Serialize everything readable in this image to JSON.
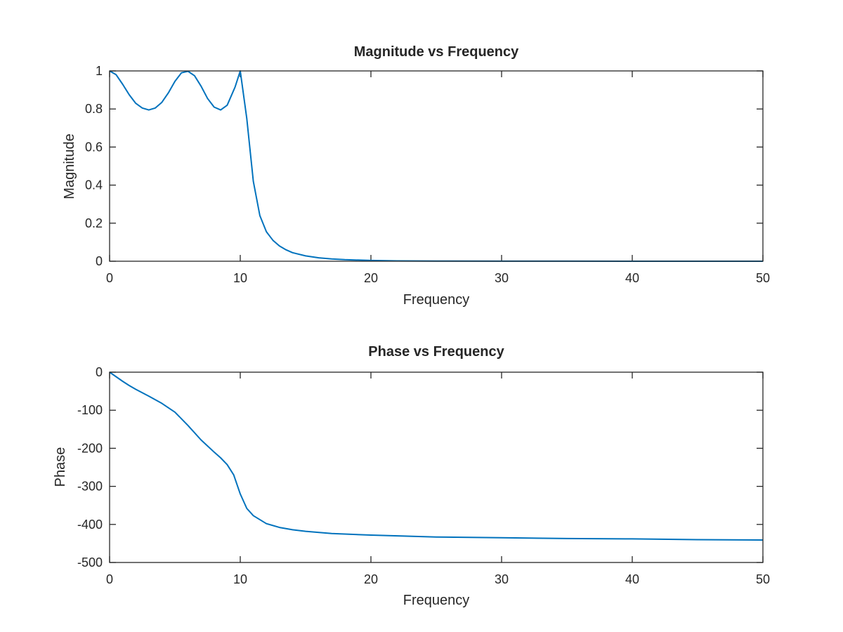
{
  "colors": {
    "series": "#0072bd",
    "axes": "#262626",
    "background": "#ffffff"
  },
  "chart_data": [
    {
      "type": "line",
      "title": "Magnitude vs Frequency",
      "xlabel": "Frequency",
      "ylabel": "Magnitude",
      "xlim": [
        0,
        50
      ],
      "ylim": [
        0,
        1
      ],
      "xticks": [
        0,
        10,
        20,
        30,
        40,
        50
      ],
      "yticks": [
        0,
        0.2,
        0.4,
        0.6,
        0.8,
        1
      ],
      "ytick_labels": [
        "0",
        "0.2",
        "0.4",
        "0.6",
        "0.8",
        "1"
      ],
      "grid": false,
      "series": [
        {
          "x": [
            0,
            0.5,
            1,
            1.5,
            2,
            2.5,
            3,
            3.5,
            4,
            4.5,
            5,
            5.5,
            6,
            6.5,
            7,
            7.5,
            8,
            8.5,
            9,
            9.6,
            10,
            10.5,
            11,
            11.5,
            12,
            12.5,
            13,
            13.5,
            14,
            15,
            16,
            17,
            18,
            20,
            22,
            25,
            30,
            35,
            40,
            45,
            50
          ],
          "y": [
            1.0,
            0.98,
            0.93,
            0.875,
            0.83,
            0.805,
            0.795,
            0.805,
            0.835,
            0.885,
            0.945,
            0.99,
            0.998,
            0.975,
            0.92,
            0.855,
            0.81,
            0.795,
            0.82,
            0.915,
            1.0,
            0.75,
            0.42,
            0.24,
            0.155,
            0.11,
            0.08,
            0.06,
            0.045,
            0.028,
            0.018,
            0.012,
            0.008,
            0.004,
            0.002,
            0.001,
            0.0005,
            0.0002,
            0.0001,
            0.0,
            0.0
          ]
        }
      ]
    },
    {
      "type": "line",
      "title": "Phase vs Frequency",
      "xlabel": "Frequency",
      "ylabel": "Phase",
      "xlim": [
        0,
        50
      ],
      "ylim": [
        -500,
        0
      ],
      "xticks": [
        0,
        10,
        20,
        30,
        40,
        50
      ],
      "yticks": [
        -500,
        -400,
        -300,
        -200,
        -100,
        0
      ],
      "ytick_labels": [
        "-500",
        "-400",
        "-300",
        "-200",
        "-100",
        "0"
      ],
      "grid": false,
      "series": [
        {
          "x": [
            0,
            0.5,
            1,
            1.5,
            2,
            3,
            4,
            5,
            6,
            7,
            8,
            8.5,
            9,
            9.5,
            10,
            10.5,
            11,
            12,
            13,
            14,
            15,
            17,
            20,
            25,
            30,
            35,
            40,
            45,
            50
          ],
          "y": [
            0,
            -12,
            -24,
            -35,
            -45,
            -63,
            -82,
            -105,
            -140,
            -178,
            -210,
            -225,
            -243,
            -270,
            -320,
            -358,
            -377,
            -398,
            -408,
            -414,
            -418,
            -424,
            -428,
            -433,
            -435,
            -437,
            -438,
            -440,
            -441
          ]
        }
      ]
    }
  ]
}
